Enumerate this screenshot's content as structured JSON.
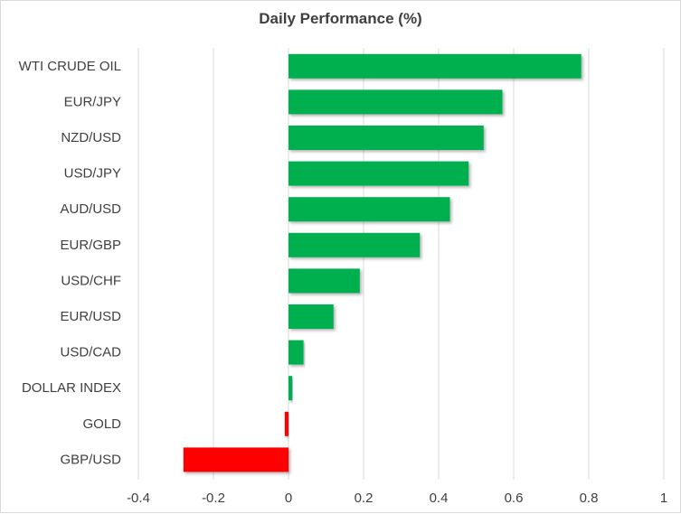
{
  "chart_data": {
    "type": "bar",
    "orientation": "horizontal",
    "title": "Daily Performance (%)",
    "categories": [
      "WTI CRUDE OIL",
      "EUR/JPY",
      "NZD/USD",
      "USD/JPY",
      "AUD/USD",
      "EUR/GBP",
      "USD/CHF",
      "EUR/USD",
      "USD/CAD",
      "DOLLAR INDEX",
      "GOLD",
      "GBP/USD"
    ],
    "values": [
      0.78,
      0.57,
      0.52,
      0.48,
      0.43,
      0.35,
      0.19,
      0.12,
      0.04,
      0.01,
      -0.01,
      -0.28
    ],
    "xlim": [
      -0.4,
      1
    ],
    "xticks": [
      "-0.4",
      "-0.2",
      "0",
      "0.2",
      "0.4",
      "0.6",
      "0.8",
      "1"
    ],
    "xtick_values": [
      -0.4,
      -0.2,
      0,
      0.2,
      0.4,
      0.6,
      0.8,
      1
    ],
    "grid": true,
    "xlabel": "",
    "ylabel": "",
    "colors": {
      "positive": "#00B050",
      "negative": "#FF0000",
      "grid": "#d9d9d9"
    }
  }
}
